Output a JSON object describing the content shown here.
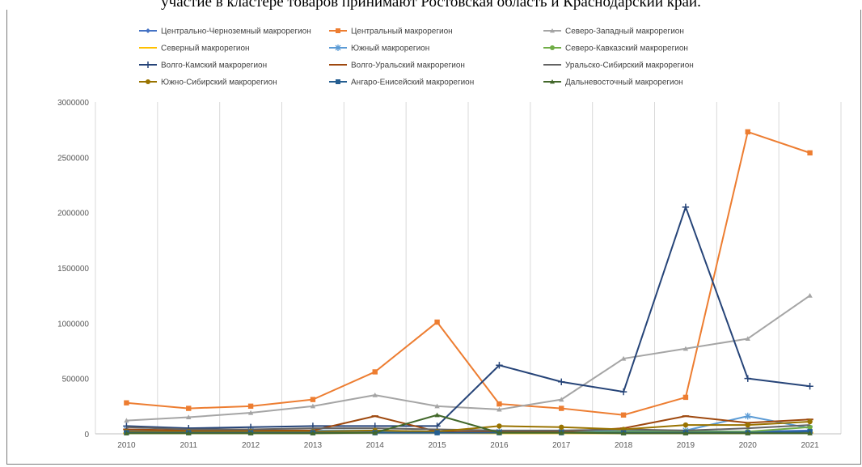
{
  "top_text": "участие в кластере товаров принимают Ростовская область и Краснодарский край.",
  "chart_data": {
    "type": "line",
    "title": "",
    "xlabel": "",
    "ylabel": "",
    "ylim": [
      0,
      3000000
    ],
    "y_ticks": [
      0,
      500000,
      1000000,
      1500000,
      2000000,
      2500000,
      3000000
    ],
    "y_tick_labels": [
      "0",
      "500000",
      "1000000",
      "1500000",
      "2000000",
      "2500000",
      "3000000"
    ],
    "x": [
      "2010",
      "2011",
      "2012",
      "2013",
      "2014",
      "2015",
      "2016",
      "2017",
      "2018",
      "2019",
      "2020",
      "2021"
    ],
    "grid": "vertical",
    "legend_position": "top",
    "series": [
      {
        "name": "Центрально-Черноземный макрорегион",
        "color": "#4472C4",
        "marker": "diamond",
        "values": [
          30000,
          25000,
          20000,
          30000,
          25000,
          15000,
          20000,
          15000,
          20000,
          25000,
          20000,
          30000
        ]
      },
      {
        "name": "Центральный макрорегион",
        "color": "#ED7D31",
        "marker": "square",
        "values": [
          280000,
          230000,
          250000,
          310000,
          560000,
          1010000,
          270000,
          230000,
          170000,
          330000,
          2730000,
          2540000
        ]
      },
      {
        "name": "Северо-Западный макрорегион",
        "color": "#A5A5A5",
        "marker": "triangle",
        "values": [
          120000,
          150000,
          190000,
          250000,
          350000,
          250000,
          220000,
          310000,
          680000,
          770000,
          860000,
          1250000
        ]
      },
      {
        "name": "Северный макрорегион",
        "color": "#FFC000",
        "marker": "dash",
        "values": [
          5000,
          5000,
          5000,
          5000,
          10000,
          10000,
          5000,
          5000,
          5000,
          5000,
          5000,
          10000
        ]
      },
      {
        "name": "Южный макрорегион",
        "color": "#5B9BD5",
        "marker": "star",
        "values": [
          40000,
          30000,
          30000,
          30000,
          30000,
          20000,
          20000,
          20000,
          30000,
          30000,
          160000,
          50000
        ]
      },
      {
        "name": "Северо-Кавказский макрорегион",
        "color": "#70AD47",
        "marker": "circle",
        "values": [
          10000,
          10000,
          10000,
          10000,
          10000,
          10000,
          10000,
          10000,
          20000,
          20000,
          20000,
          60000
        ]
      },
      {
        "name": "Волго-Камский макрорегион",
        "color": "#264478",
        "marker": "plus",
        "values": [
          70000,
          50000,
          60000,
          70000,
          70000,
          70000,
          620000,
          470000,
          380000,
          2050000,
          500000,
          430000
        ]
      },
      {
        "name": "Волго-Уральский макрорегион",
        "color": "#9E480E",
        "marker": "dash",
        "values": [
          40000,
          30000,
          30000,
          30000,
          160000,
          20000,
          20000,
          20000,
          50000,
          160000,
          100000,
          130000
        ]
      },
      {
        "name": "Уральско-Сибирский макрорегион",
        "color": "#636363",
        "marker": "none",
        "values": [
          60000,
          40000,
          40000,
          50000,
          50000,
          40000,
          30000,
          30000,
          40000,
          30000,
          50000,
          80000
        ]
      },
      {
        "name": "Южно-Сибирский макрорегион",
        "color": "#997300",
        "marker": "circle",
        "values": [
          20000,
          20000,
          20000,
          20000,
          30000,
          20000,
          70000,
          60000,
          40000,
          80000,
          80000,
          110000
        ]
      },
      {
        "name": "Ангаро-Енисейский макрорегион",
        "color": "#255E91",
        "marker": "square",
        "values": [
          10000,
          10000,
          10000,
          10000,
          10000,
          10000,
          10000,
          10000,
          10000,
          10000,
          10000,
          20000
        ]
      },
      {
        "name": "Дальневосточный макрорегион",
        "color": "#43682B",
        "marker": "triangle",
        "values": [
          5000,
          5000,
          5000,
          5000,
          10000,
          170000,
          10000,
          10000,
          5000,
          5000,
          5000,
          5000
        ]
      }
    ]
  }
}
